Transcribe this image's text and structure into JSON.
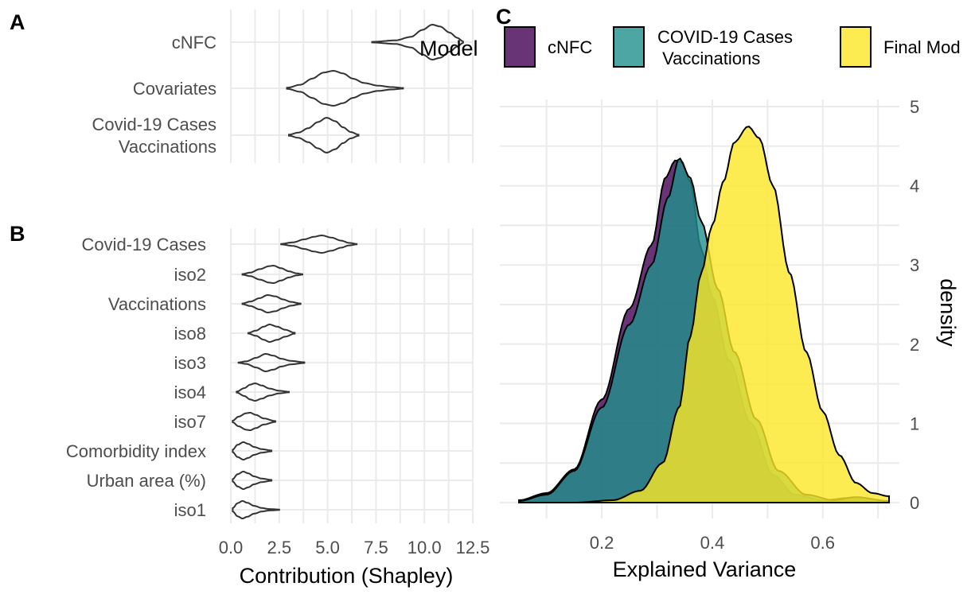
{
  "chart_data": [
    {
      "panel": "A",
      "type": "violin",
      "orientation": "horizontal",
      "categories": [
        "cNFC",
        "Covariates",
        "Covid-19 Cases\nVaccinations"
      ],
      "distributions": [
        {
          "category": "cNFC",
          "min": 7.3,
          "max": 12.0,
          "points": [
            [
              7.3,
              0.02
            ],
            [
              8.5,
              0.1
            ],
            [
              9.3,
              0.3
            ],
            [
              9.9,
              0.7
            ],
            [
              10.4,
              1.0
            ],
            [
              10.8,
              0.9
            ],
            [
              11.3,
              0.55
            ],
            [
              11.7,
              0.25
            ],
            [
              12.0,
              0.04
            ]
          ]
        },
        {
          "category": "Covariates",
          "min": 2.9,
          "max": 8.9,
          "points": [
            [
              2.9,
              0.03
            ],
            [
              3.6,
              0.2
            ],
            [
              4.2,
              0.55
            ],
            [
              4.8,
              0.9
            ],
            [
              5.3,
              1.0
            ],
            [
              5.8,
              0.85
            ],
            [
              6.3,
              0.55
            ],
            [
              6.9,
              0.3
            ],
            [
              7.6,
              0.15
            ],
            [
              8.3,
              0.07
            ],
            [
              8.9,
              0.02
            ]
          ]
        },
        {
          "category": "Covid-19 Cases\nVaccinations",
          "min": 3.0,
          "max": 6.6,
          "points": [
            [
              3.0,
              0.03
            ],
            [
              3.5,
              0.15
            ],
            [
              4.0,
              0.4
            ],
            [
              4.5,
              0.75
            ],
            [
              4.95,
              1.0
            ],
            [
              5.4,
              0.8
            ],
            [
              5.8,
              0.45
            ],
            [
              6.2,
              0.18
            ],
            [
              6.6,
              0.03
            ]
          ]
        }
      ],
      "xlim": [
        0,
        12.5
      ],
      "xticks": [
        0.0,
        2.5,
        5.0,
        7.5,
        10.0,
        12.5
      ]
    },
    {
      "panel": "B",
      "type": "violin",
      "orientation": "horizontal",
      "categories": [
        "Covid-19 Cases",
        "iso2",
        "Vaccinations",
        "iso8",
        "iso3",
        "iso4",
        "iso7",
        "Comorbidity index",
        "Urban area (%)",
        "iso1"
      ],
      "distributions": [
        {
          "category": "Covid-19 Cases",
          "min": 2.6,
          "max": 6.5,
          "points": [
            [
              2.6,
              0.03
            ],
            [
              3.2,
              0.2
            ],
            [
              3.8,
              0.55
            ],
            [
              4.3,
              0.85
            ],
            [
              4.7,
              1.0
            ],
            [
              5.2,
              0.75
            ],
            [
              5.7,
              0.4
            ],
            [
              6.1,
              0.15
            ],
            [
              6.5,
              0.03
            ]
          ]
        },
        {
          "category": "iso2",
          "min": 0.6,
          "max": 3.7,
          "points": [
            [
              0.6,
              0.04
            ],
            [
              1.0,
              0.2
            ],
            [
              1.5,
              0.6
            ],
            [
              2.0,
              0.95
            ],
            [
              2.2,
              1.0
            ],
            [
              2.6,
              0.7
            ],
            [
              3.0,
              0.35
            ],
            [
              3.4,
              0.12
            ],
            [
              3.7,
              0.03
            ]
          ]
        },
        {
          "category": "Vaccinations",
          "min": 0.6,
          "max": 3.6,
          "points": [
            [
              0.6,
              0.04
            ],
            [
              1.0,
              0.25
            ],
            [
              1.5,
              0.65
            ],
            [
              1.9,
              1.0
            ],
            [
              2.3,
              0.85
            ],
            [
              2.7,
              0.5
            ],
            [
              3.1,
              0.22
            ],
            [
              3.6,
              0.04
            ]
          ]
        },
        {
          "category": "iso8",
          "min": 0.9,
          "max": 3.3,
          "points": [
            [
              0.9,
              0.04
            ],
            [
              1.3,
              0.3
            ],
            [
              1.7,
              0.75
            ],
            [
              2.0,
              1.0
            ],
            [
              2.4,
              0.75
            ],
            [
              2.8,
              0.4
            ],
            [
              3.3,
              0.05
            ]
          ]
        },
        {
          "category": "iso3",
          "min": 0.4,
          "max": 3.8,
          "points": [
            [
              0.4,
              0.03
            ],
            [
              0.8,
              0.15
            ],
            [
              1.3,
              0.55
            ],
            [
              1.8,
              1.0
            ],
            [
              2.2,
              0.8
            ],
            [
              2.6,
              0.45
            ],
            [
              3.1,
              0.2
            ],
            [
              3.8,
              0.04
            ]
          ]
        },
        {
          "category": "iso4",
          "min": 0.3,
          "max": 3.0,
          "points": [
            [
              0.3,
              0.05
            ],
            [
              0.7,
              0.45
            ],
            [
              1.0,
              0.85
            ],
            [
              1.25,
              1.0
            ],
            [
              1.6,
              0.75
            ],
            [
              2.0,
              0.4
            ],
            [
              2.5,
              0.15
            ],
            [
              3.0,
              0.03
            ]
          ]
        },
        {
          "category": "iso7",
          "min": 0.1,
          "max": 2.3,
          "points": [
            [
              0.1,
              0.1
            ],
            [
              0.4,
              0.55
            ],
            [
              0.8,
              0.95
            ],
            [
              1.0,
              1.0
            ],
            [
              1.3,
              0.75
            ],
            [
              1.7,
              0.35
            ],
            [
              2.3,
              0.05
            ]
          ]
        },
        {
          "category": "Comorbidity index",
          "min": 0.1,
          "max": 2.1,
          "points": [
            [
              0.1,
              0.15
            ],
            [
              0.35,
              0.7
            ],
            [
              0.65,
              1.0
            ],
            [
              0.9,
              0.8
            ],
            [
              1.2,
              0.45
            ],
            [
              1.6,
              0.2
            ],
            [
              2.1,
              0.05
            ]
          ]
        },
        {
          "category": "Urban area (%)",
          "min": 0.1,
          "max": 2.1,
          "points": [
            [
              0.1,
              0.15
            ],
            [
              0.35,
              0.7
            ],
            [
              0.65,
              1.0
            ],
            [
              0.9,
              0.8
            ],
            [
              1.2,
              0.45
            ],
            [
              1.6,
              0.2
            ],
            [
              2.1,
              0.05
            ]
          ]
        },
        {
          "category": "iso1",
          "min": 0.1,
          "max": 2.5,
          "points": [
            [
              0.1,
              0.2
            ],
            [
              0.35,
              0.75
            ],
            [
              0.6,
              1.0
            ],
            [
              0.85,
              0.8
            ],
            [
              1.2,
              0.45
            ],
            [
              1.6,
              0.2
            ],
            [
              2.0,
              0.08
            ],
            [
              2.5,
              0.03
            ]
          ]
        }
      ],
      "xlabel": "Contribution (Shapley)",
      "xlim": [
        0,
        12.5
      ],
      "xticks": [
        0.0,
        2.5,
        5.0,
        7.5,
        10.0,
        12.5
      ]
    },
    {
      "panel": "C",
      "type": "area",
      "xlabel": "Explained Variance",
      "ylabel": "density",
      "xlim": [
        0.05,
        0.72
      ],
      "ylim": [
        0,
        5
      ],
      "xticks": [
        0.2,
        0.4,
        0.6
      ],
      "yticks": [
        0,
        1,
        2,
        3,
        4,
        5
      ],
      "legend_title": "Model",
      "legend_position": "top",
      "series": [
        {
          "name": "cNFC",
          "color": "#440154",
          "points": [
            [
              0.05,
              0.03
            ],
            [
              0.1,
              0.12
            ],
            [
              0.15,
              0.42
            ],
            [
              0.2,
              1.3
            ],
            [
              0.25,
              2.45
            ],
            [
              0.29,
              3.25
            ],
            [
              0.315,
              4.1
            ],
            [
              0.333,
              4.32
            ],
            [
              0.345,
              4.3
            ],
            [
              0.36,
              4.05
            ],
            [
              0.38,
              3.2
            ],
            [
              0.4,
              2.6
            ],
            [
              0.43,
              1.8
            ],
            [
              0.47,
              1.0
            ],
            [
              0.51,
              0.35
            ],
            [
              0.55,
              0.1
            ],
            [
              0.6,
              0.03
            ],
            [
              0.65,
              0.06
            ],
            [
              0.72,
              0.02
            ]
          ]
        },
        {
          "name": "COVID-19 Cases\n Vaccinations",
          "color": "#21908C",
          "points": [
            [
              0.05,
              0.02
            ],
            [
              0.1,
              0.1
            ],
            [
              0.15,
              0.4
            ],
            [
              0.2,
              1.2
            ],
            [
              0.25,
              2.25
            ],
            [
              0.29,
              3.0
            ],
            [
              0.32,
              3.85
            ],
            [
              0.34,
              4.35
            ],
            [
              0.36,
              4.1
            ],
            [
              0.38,
              3.55
            ],
            [
              0.41,
              2.7
            ],
            [
              0.44,
              1.9
            ],
            [
              0.48,
              1.05
            ],
            [
              0.52,
              0.4
            ],
            [
              0.57,
              0.1
            ],
            [
              0.62,
              0.03
            ],
            [
              0.66,
              0.07
            ],
            [
              0.72,
              0.02
            ]
          ]
        },
        {
          "name": "Final Mod",
          "color": "#FDE725",
          "points": [
            [
              0.05,
              0.0
            ],
            [
              0.15,
              0.0
            ],
            [
              0.22,
              0.03
            ],
            [
              0.27,
              0.15
            ],
            [
              0.31,
              0.5
            ],
            [
              0.34,
              1.2
            ],
            [
              0.36,
              2.1
            ],
            [
              0.38,
              2.9
            ],
            [
              0.4,
              3.5
            ],
            [
              0.42,
              4.05
            ],
            [
              0.44,
              4.55
            ],
            [
              0.465,
              4.75
            ],
            [
              0.485,
              4.6
            ],
            [
              0.51,
              4.0
            ],
            [
              0.54,
              2.9
            ],
            [
              0.57,
              1.9
            ],
            [
              0.6,
              1.15
            ],
            [
              0.63,
              0.6
            ],
            [
              0.66,
              0.25
            ],
            [
              0.69,
              0.12
            ],
            [
              0.72,
              0.08
            ]
          ]
        }
      ]
    }
  ]
}
